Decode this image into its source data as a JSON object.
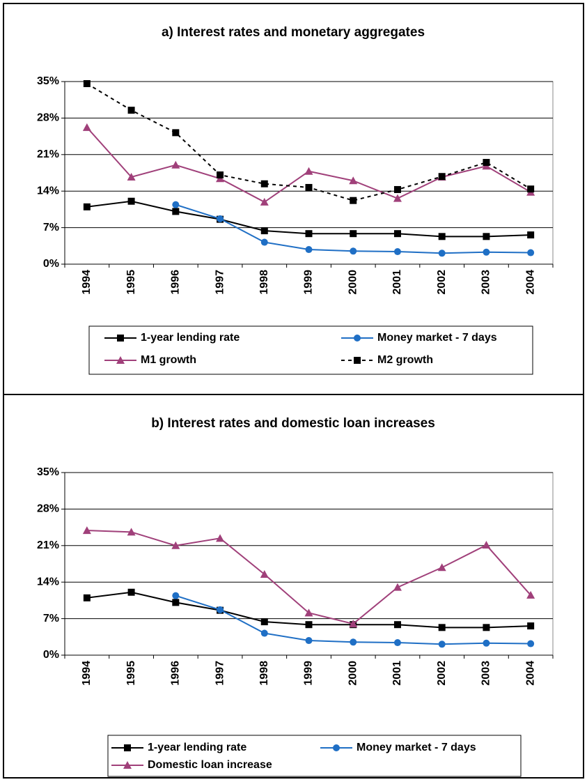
{
  "chart_data": [
    {
      "type": "line",
      "title": "a) Interest rates and monetary aggregates",
      "categories": [
        "1994",
        "1995",
        "1996",
        "1997",
        "1998",
        "1999",
        "2000",
        "2001",
        "2002",
        "2003",
        "2004"
      ],
      "ylim": [
        0,
        35
      ],
      "yticks": [
        {
          "value": 0,
          "label": "0%"
        },
        {
          "value": 7,
          "label": "7%"
        },
        {
          "value": 14,
          "label": "14%"
        },
        {
          "value": 21,
          "label": "21%"
        },
        {
          "value": 28,
          "label": "28%"
        },
        {
          "value": 35,
          "label": "35%"
        }
      ],
      "grid": true,
      "series": [
        {
          "name": "1-year lending rate",
          "color": "#000000",
          "marker": "square",
          "dash": false,
          "values": [
            10.98,
            12.06,
            10.1,
            8.6,
            6.4,
            5.85,
            5.85,
            5.85,
            5.3,
            5.3,
            5.6
          ]
        },
        {
          "name": "Money market - 7 days",
          "color": "#1f6fc5",
          "marker": "circle",
          "dash": false,
          "values": [
            null,
            null,
            11.4,
            8.7,
            4.2,
            2.8,
            2.5,
            2.4,
            2.1,
            2.3,
            2.2
          ]
        },
        {
          "name": "M1 growth",
          "color": "#a0407a",
          "marker": "triangle",
          "dash": false,
          "values": [
            26.2,
            16.7,
            19.0,
            16.4,
            11.9,
            17.8,
            16.0,
            12.6,
            16.7,
            18.8,
            13.8
          ]
        },
        {
          "name": "M2 growth",
          "color": "#000000",
          "marker": "square",
          "dash": true,
          "values": [
            34.6,
            29.5,
            25.2,
            17.1,
            15.4,
            14.7,
            12.2,
            14.3,
            16.8,
            19.5,
            14.4
          ]
        }
      ]
    },
    {
      "type": "line",
      "title": "b) Interest rates and domestic loan increases",
      "categories": [
        "1994",
        "1995",
        "1996",
        "1997",
        "1998",
        "1999",
        "2000",
        "2001",
        "2002",
        "2003",
        "2004"
      ],
      "ylim": [
        0,
        35
      ],
      "yticks": [
        {
          "value": 0,
          "label": "0%"
        },
        {
          "value": 7,
          "label": "7%"
        },
        {
          "value": 14,
          "label": "14%"
        },
        {
          "value": 21,
          "label": "21%"
        },
        {
          "value": 28,
          "label": "28%"
        },
        {
          "value": 35,
          "label": "35%"
        }
      ],
      "grid": true,
      "series": [
        {
          "name": "1-year lending rate",
          "color": "#000000",
          "marker": "square",
          "dash": false,
          "values": [
            10.98,
            12.06,
            10.1,
            8.6,
            6.4,
            5.85,
            5.85,
            5.85,
            5.3,
            5.3,
            5.6
          ]
        },
        {
          "name": "Money market - 7 days",
          "color": "#1f6fc5",
          "marker": "circle",
          "dash": false,
          "values": [
            null,
            null,
            11.4,
            8.7,
            4.2,
            2.8,
            2.5,
            2.4,
            2.1,
            2.3,
            2.2
          ]
        },
        {
          "name": "Domestic loan increase",
          "color": "#a0407a",
          "marker": "triangle",
          "dash": false,
          "values": [
            23.9,
            23.6,
            21.0,
            22.4,
            15.5,
            8.1,
            6.0,
            13.0,
            16.8,
            21.1,
            11.5
          ]
        }
      ]
    }
  ]
}
